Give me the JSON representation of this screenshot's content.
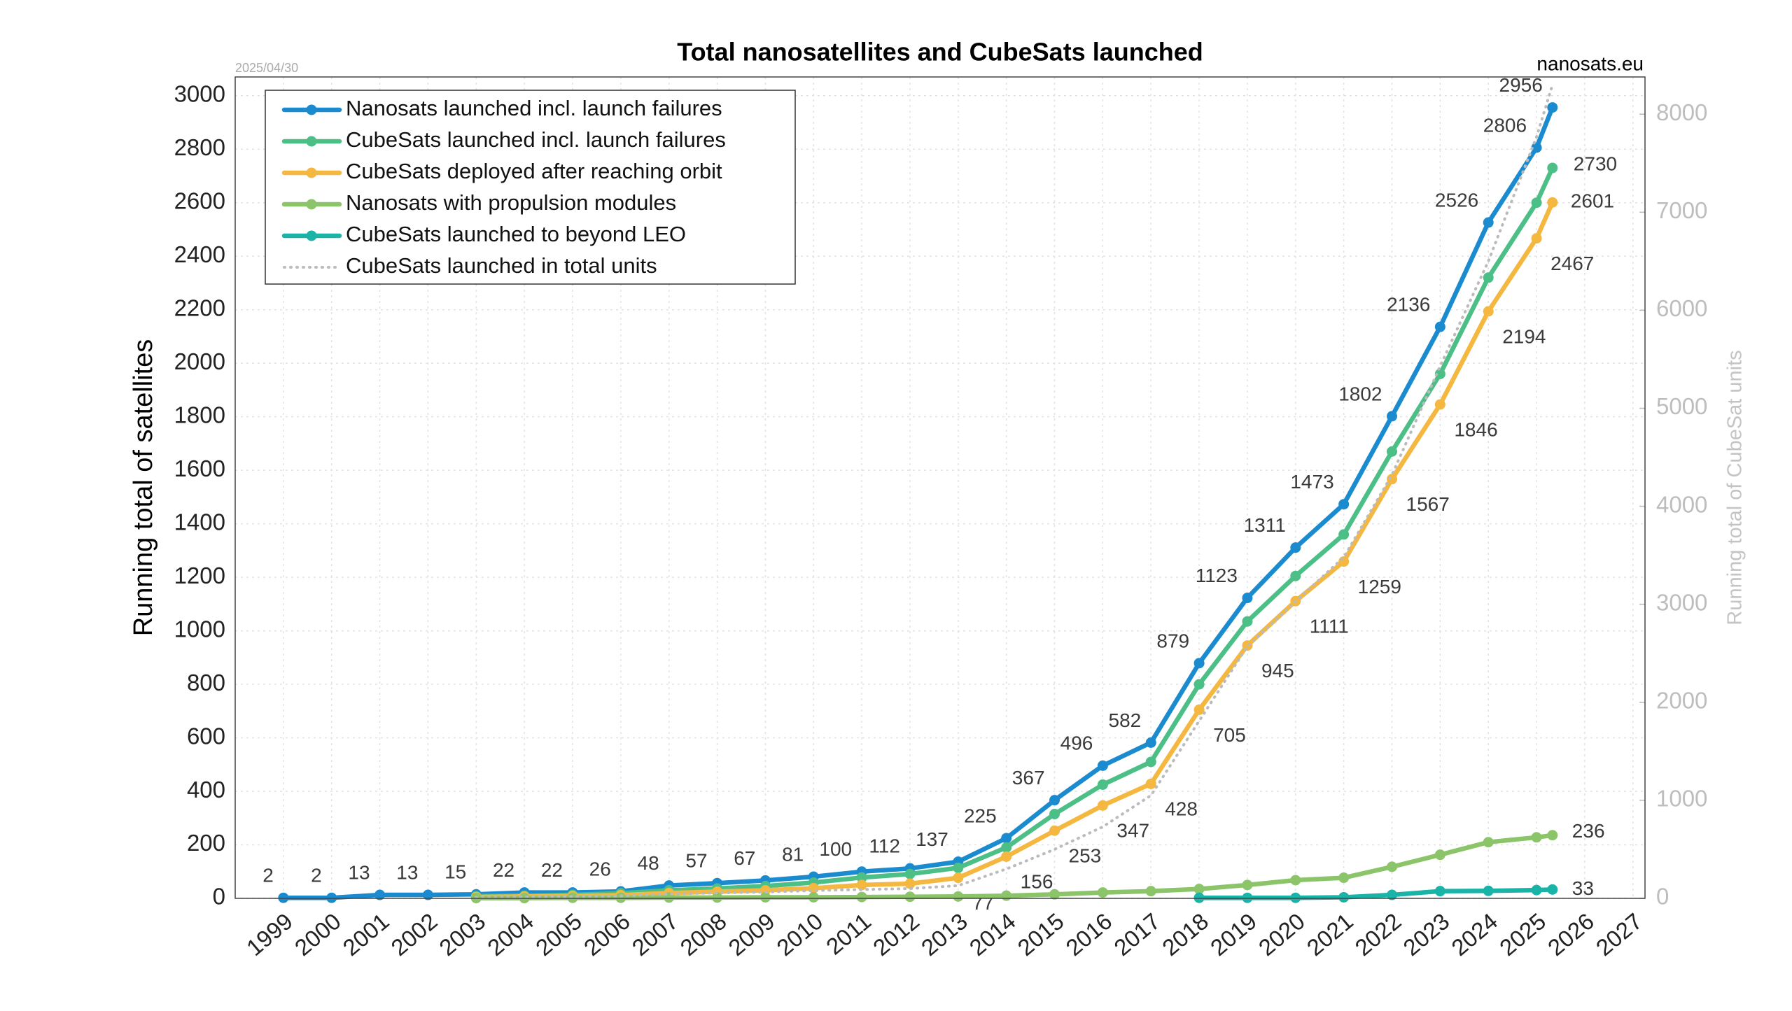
{
  "chart_data": {
    "type": "line",
    "title": "Total nanosatellites and CubeSats launched",
    "date_note": "2025/04/30",
    "source": "nanosats.eu",
    "ylabel": "Running total of satellites",
    "y2label": "Running total of CubeSat units",
    "x": [
      1999,
      2000,
      2001,
      2002,
      2003,
      2004,
      2005,
      2006,
      2007,
      2008,
      2009,
      2010,
      2011,
      2012,
      2013,
      2014,
      2015,
      2016,
      2017,
      2018,
      2019,
      2020,
      2021,
      2022,
      2023,
      2024,
      2025,
      2025.33
    ],
    "xlim": [
      1998,
      2027.25
    ],
    "xticks": [
      1999,
      2000,
      2001,
      2002,
      2003,
      2004,
      2005,
      2006,
      2007,
      2008,
      2009,
      2010,
      2011,
      2012,
      2013,
      2014,
      2015,
      2016,
      2017,
      2018,
      2019,
      2020,
      2021,
      2022,
      2023,
      2024,
      2025,
      2026,
      2027
    ],
    "ylim": [
      0,
      3070
    ],
    "yticks": [
      0,
      200,
      400,
      600,
      800,
      1000,
      1200,
      1400,
      1600,
      1800,
      2000,
      2200,
      2400,
      2600,
      2800,
      3000
    ],
    "y2lim": [
      0,
      8380
    ],
    "y2ticks": [
      0,
      1000,
      2000,
      3000,
      4000,
      5000,
      6000,
      7000,
      8000
    ],
    "grid": true,
    "legend": "upper left",
    "series": [
      {
        "name": "Nanosats launched incl. launch failures",
        "color": "#1b8bd0",
        "marker": true,
        "values": [
          2,
          2,
          13,
          13,
          15,
          22,
          22,
          26,
          48,
          57,
          67,
          81,
          100,
          112,
          137,
          225,
          367,
          496,
          582,
          879,
          1123,
          1311,
          1473,
          1802,
          2136,
          2526,
          2806,
          2956
        ]
      },
      {
        "name": "CubeSats launched incl. launch failures",
        "color": "#4cbf86",
        "marker": true,
        "values": [
          null,
          null,
          null,
          null,
          8,
          10,
          13,
          19,
          30,
          37,
          46,
          59,
          78,
          91,
          114,
          190,
          315,
          425,
          510,
          800,
          1035,
          1205,
          1360,
          1670,
          1960,
          2320,
          2600,
          2730
        ]
      },
      {
        "name": "CubeSats deployed after reaching orbit",
        "color": "#f4b73f",
        "marker": true,
        "values": [
          null,
          null,
          null,
          null,
          5,
          7,
          9,
          12,
          20,
          25,
          30,
          38,
          50,
          55,
          77,
          156,
          253,
          347,
          428,
          705,
          945,
          1111,
          1259,
          1567,
          1846,
          2194,
          2467,
          2601
        ]
      },
      {
        "name": "Nanosats with propulsion modules",
        "color": "#8cc46a",
        "marker": true,
        "values": [
          null,
          null,
          null,
          null,
          1,
          1,
          2,
          2,
          3,
          3,
          4,
          4,
          5,
          6,
          7,
          10,
          15,
          22,
          27,
          35,
          50,
          68,
          77,
          118,
          163,
          210,
          228,
          236
        ]
      },
      {
        "name": "CubeSats launched to beyond LEO",
        "color": "#1ab3a8",
        "marker": true,
        "values": [
          null,
          null,
          null,
          null,
          null,
          null,
          null,
          null,
          null,
          null,
          null,
          null,
          null,
          null,
          null,
          null,
          null,
          null,
          null,
          2,
          2,
          2,
          4,
          13,
          27,
          28,
          31,
          33
        ]
      },
      {
        "name": "CubeSats launched in total units",
        "color": "#bbbbbb",
        "marker": false,
        "line_style": "dotted",
        "axis": "y2",
        "values": [
          null,
          null,
          null,
          null,
          10,
          14,
          18,
          25,
          45,
          55,
          65,
          80,
          90,
          100,
          130,
          300,
          500,
          730,
          1050,
          1810,
          2570,
          3030,
          3480,
          4320,
          5430,
          6500,
          7770,
          8300
        ]
      }
    ]
  }
}
